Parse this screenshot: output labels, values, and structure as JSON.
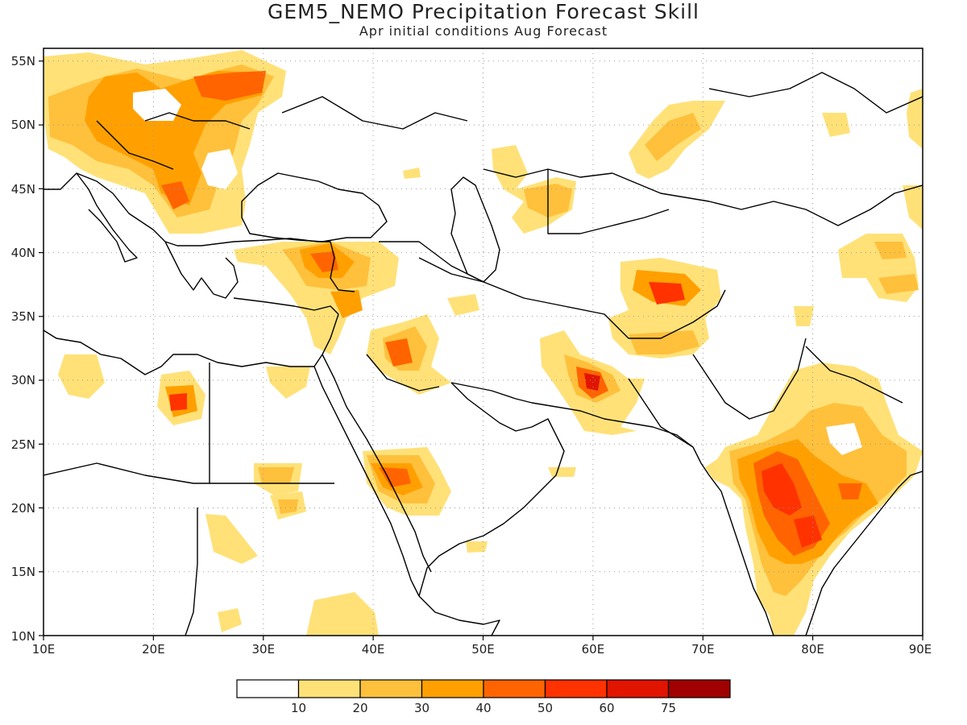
{
  "title": "GEM5_NEMO Precipitation Forecast Skill",
  "subtitle": "Apr initial conditions  Aug Forecast",
  "map": {
    "projection": "plate carree",
    "lon_range": [
      10,
      90
    ],
    "lat_range": [
      10,
      56
    ],
    "grid": "dotted",
    "x_ticks": [
      "10E",
      "20E",
      "30E",
      "40E",
      "50E",
      "60E",
      "70E",
      "80E",
      "90E"
    ],
    "y_ticks": [
      "10N",
      "15N",
      "20N",
      "25N",
      "30N",
      "35N",
      "40N",
      "45N",
      "50N",
      "55N"
    ]
  },
  "colorbar": {
    "colors": [
      "#ffffff",
      "#ffe178",
      "#ffc03c",
      "#ffa000",
      "#ff6400",
      "#ff3200",
      "#e11400",
      "#a00000"
    ],
    "labels": [
      "10",
      "20",
      "30",
      "40",
      "50",
      "60",
      "75"
    ]
  },
  "colors": {
    "coastline": "#000000",
    "frame": "#000000",
    "grid": "#999999"
  }
}
